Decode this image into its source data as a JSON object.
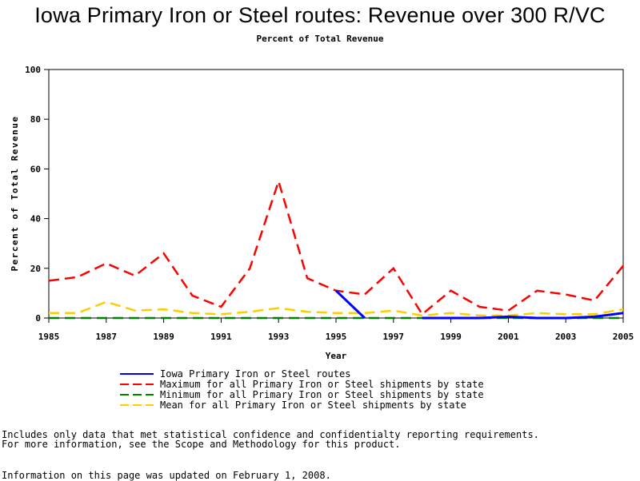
{
  "header": {
    "title": "Iowa Primary Iron or Steel routes: Revenue over 300 R/VC",
    "subtitle": "Percent of Total Revenue"
  },
  "chart_data": {
    "type": "line",
    "title": "Iowa Primary Iron or Steel routes: Revenue over 300 R/VC",
    "subtitle": "Percent of Total Revenue",
    "xlabel": "Year",
    "ylabel": "Percent of Total Revenue",
    "xlim": [
      1985,
      2005
    ],
    "ylim": [
      0,
      100
    ],
    "x_ticks": [
      "1985",
      "1987",
      "1989",
      "1991",
      "1993",
      "1995",
      "1997",
      "1999",
      "2001",
      "2003",
      "2005"
    ],
    "y_ticks": [
      "0",
      "20",
      "40",
      "60",
      "80",
      "100"
    ],
    "x": [
      1985,
      1986,
      1987,
      1988,
      1989,
      1990,
      1991,
      1992,
      1993,
      1994,
      1995,
      1996,
      1997,
      1998,
      1999,
      2000,
      2001,
      2002,
      2003,
      2004,
      2005
    ],
    "legend_position": "bottom",
    "grid": false,
    "series": [
      {
        "name": "Iowa Primary Iron or Steel routes",
        "color": "#0000ff",
        "style": "solid",
        "values": [
          null,
          null,
          null,
          null,
          null,
          null,
          null,
          null,
          null,
          null,
          11,
          0,
          null,
          0,
          0,
          0,
          0.5,
          0,
          0,
          0.5,
          2
        ]
      },
      {
        "name": "Maximum for all Primary Iron or Steel shipments by state",
        "color": "#ff0000",
        "style": "dashed",
        "values": [
          15,
          16.5,
          22,
          17,
          26,
          9,
          4.5,
          20,
          55,
          16,
          11,
          9.5,
          20,
          1.5,
          11,
          4.5,
          3,
          11,
          9.5,
          7,
          21
        ]
      },
      {
        "name": "Minimum for all Primary Iron or Steel shipments by state",
        "color": "#008000",
        "style": "dashed",
        "values": [
          0,
          0,
          0,
          0,
          0,
          0,
          0,
          0,
          0,
          0,
          0,
          0,
          0,
          0,
          0,
          0,
          0,
          0,
          0,
          0,
          0
        ]
      },
      {
        "name": "Mean for all Primary Iron or Steel shipments by state",
        "color": "#ffcc00",
        "style": "dashed",
        "values": [
          2,
          2,
          6.5,
          3,
          3.5,
          2,
          1.5,
          2.5,
          4,
          2.5,
          2,
          2,
          3,
          1,
          2,
          1,
          1,
          2,
          1.5,
          1.5,
          3.5
        ]
      }
    ]
  },
  "notes": {
    "line1": "Includes only data that met statistical confidence and confidentialty reporting requirements.",
    "line2": "For more information, see the Scope and Methodology for this product.",
    "line3": "Information on this page was updated on February 1, 2008."
  }
}
